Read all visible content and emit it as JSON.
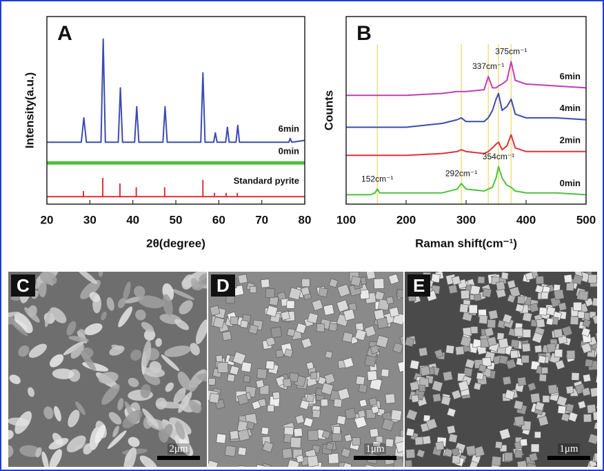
{
  "chart_data": [
    {
      "type": "line",
      "panel": "A",
      "x_label": "2θ(degree)",
      "y_label": "Intensity(a.u.)",
      "xlim": [
        20,
        80
      ],
      "xticks": [
        20,
        30,
        40,
        50,
        60,
        70,
        80
      ],
      "ylim": [
        0,
        100
      ],
      "series": [
        {
          "name": "6min",
          "color": "#3b4bb0",
          "x": [
            20,
            28,
            28.6,
            29.2,
            32.6,
            33.1,
            33.6,
            36.6,
            37.1,
            37.6,
            40.4,
            40.9,
            41.4,
            47,
            47.5,
            48,
            55.8,
            56.3,
            56.8,
            58.8,
            59.2,
            59.6,
            61.6,
            62,
            62.4,
            64,
            64.4,
            64.8,
            76.3,
            76.6,
            77,
            80
          ],
          "values": [
            33,
            33,
            46,
            33,
            33,
            88,
            33,
            33,
            62,
            33,
            33,
            52,
            33,
            33,
            52,
            33,
            33,
            70,
            33,
            33,
            38,
            33,
            33,
            41,
            33,
            33,
            42,
            33,
            33,
            35,
            33,
            34
          ]
        },
        {
          "name": "0min",
          "color": "#4cc13c",
          "x": [
            20,
            80
          ],
          "values": [
            22,
            22
          ]
        },
        {
          "name": "Standard pyrite",
          "color": "#e0303a",
          "type": "stick",
          "baseline": 4,
          "x": [
            28.5,
            33,
            37,
            40.8,
            47.4,
            56.3,
            59,
            61.7,
            64.3
          ],
          "values": [
            7,
            14,
            11,
            9,
            9,
            13,
            6,
            6,
            6
          ]
        }
      ]
    },
    {
      "type": "line",
      "panel": "B",
      "x_label": "Raman shift(cm⁻¹)",
      "y_label": "Counts",
      "xlim": [
        100,
        500
      ],
      "xticks": [
        100,
        200,
        300,
        400,
        500
      ],
      "ylim": [
        0,
        100
      ],
      "marker_color": "#f3e07a",
      "series": [
        {
          "name": "6min",
          "color": "#c03cb8",
          "x": [
            100,
            140,
            148,
            152,
            156,
            200,
            260,
            285,
            292,
            300,
            330,
            337,
            344,
            350,
            354,
            360,
            368,
            375,
            382,
            400,
            450,
            500
          ],
          "values": [
            58,
            58,
            58,
            58,
            58,
            58,
            59,
            60,
            60,
            60,
            61,
            68,
            62,
            62,
            63,
            64,
            66,
            76,
            66,
            64,
            63,
            62
          ],
          "peak_labels": [
            {
              "x": 337,
              "label": "337cm⁻¹"
            },
            {
              "x": 375,
              "label": "375cm⁻¹"
            }
          ]
        },
        {
          "name": "4min",
          "color": "#3b4bb0",
          "x": [
            100,
            140,
            148,
            152,
            156,
            200,
            260,
            285,
            292,
            300,
            330,
            337,
            344,
            350,
            354,
            360,
            368,
            375,
            382,
            400,
            450,
            500
          ],
          "values": [
            41,
            41,
            41,
            41,
            41,
            41,
            43,
            45,
            46,
            44,
            44,
            46,
            50,
            56,
            59,
            50,
            52,
            56,
            48,
            46,
            46,
            45
          ]
        },
        {
          "name": "2min",
          "color": "#e0303a",
          "x": [
            100,
            140,
            148,
            152,
            156,
            200,
            260,
            285,
            292,
            300,
            330,
            337,
            344,
            350,
            354,
            360,
            368,
            375,
            382,
            400,
            450,
            500
          ],
          "values": [
            26,
            26,
            26,
            26,
            26,
            26,
            27,
            28,
            29,
            28,
            27,
            28,
            30,
            32,
            33,
            29,
            31,
            37,
            30,
            28,
            28,
            28
          ]
        },
        {
          "name": "0min",
          "color": "#4cc13c",
          "x": [
            100,
            140,
            148,
            152,
            156,
            200,
            260,
            285,
            292,
            300,
            330,
            337,
            344,
            350,
            354,
            360,
            368,
            375,
            382,
            400,
            450,
            500
          ],
          "values": [
            5,
            5,
            6,
            8,
            6,
            6,
            6,
            8,
            11,
            8,
            7,
            8,
            9,
            14,
            20,
            14,
            10,
            9,
            7,
            6,
            6,
            5
          ],
          "peak_labels": [
            {
              "x": 152,
              "label": "152cm⁻¹"
            },
            {
              "x": 292,
              "label": "292cm⁻¹"
            },
            {
              "x": 354,
              "label": "354cm⁻¹"
            }
          ]
        }
      ]
    }
  ],
  "images": [
    {
      "label": "C",
      "scale_bar": "2μm"
    },
    {
      "label": "D",
      "scale_bar": "1μm"
    },
    {
      "label": "E",
      "scale_bar": "1μm"
    }
  ]
}
